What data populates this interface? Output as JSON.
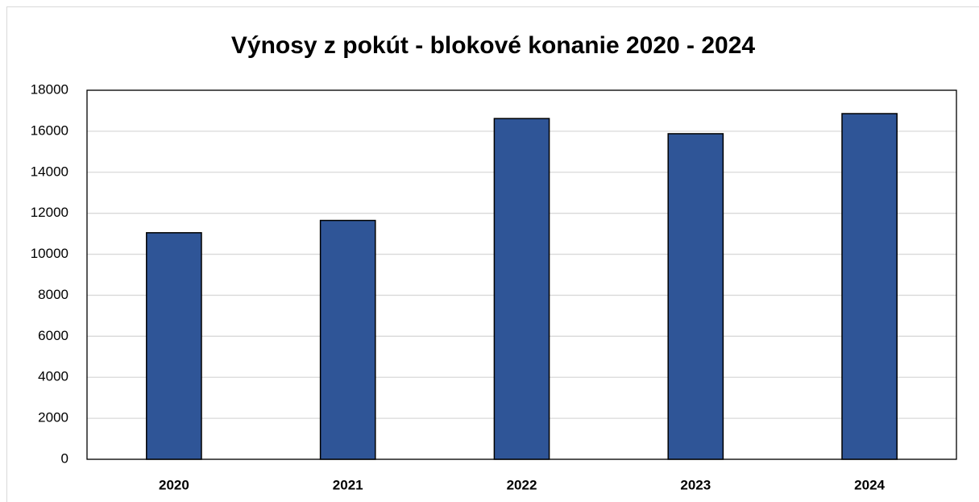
{
  "chart_data": {
    "type": "bar",
    "title": "Výnosy z pokút - blokové konanie 2020 - 2024",
    "categories": [
      "2020",
      "2021",
      "2022",
      "2023",
      "2024"
    ],
    "values": [
      11050,
      11650,
      16620,
      15880,
      16860
    ],
    "color": "#2f5597",
    "ylim": [
      0,
      18000
    ],
    "yticks": [
      0,
      2000,
      4000,
      6000,
      8000,
      10000,
      12000,
      14000,
      16000,
      18000
    ],
    "grid": true
  }
}
